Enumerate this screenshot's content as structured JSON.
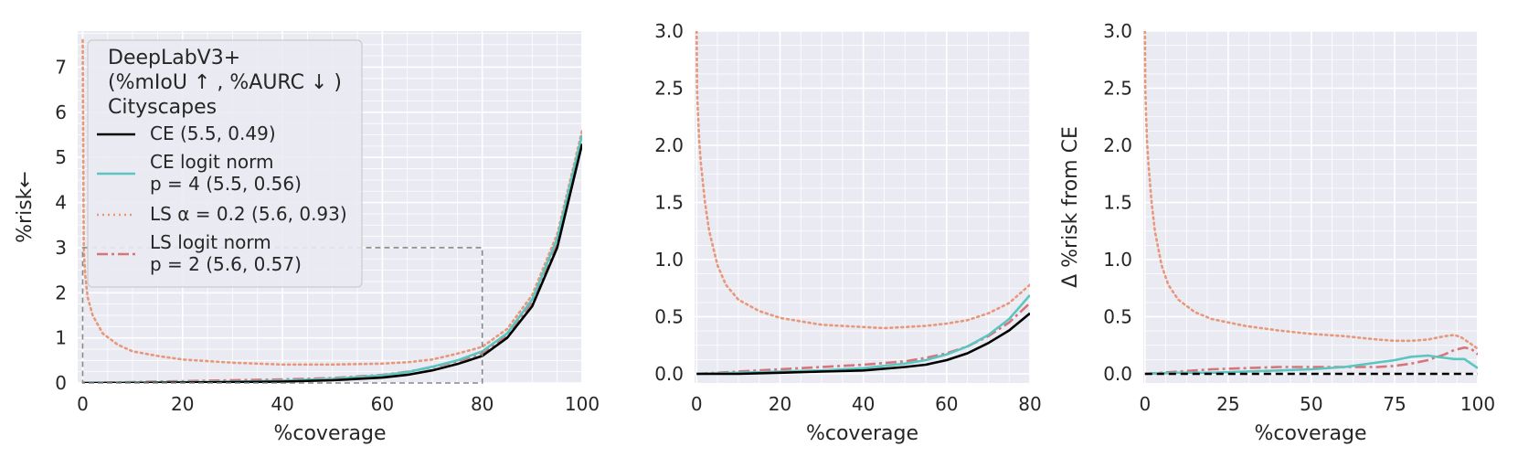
{
  "colors": {
    "panel_bg": "#eaeaf2",
    "grid": "#ffffff",
    "ce": "#000000",
    "ce_logit_norm": "#5bc5c0",
    "ls": "#e8977a",
    "ls_logit_norm": "#d6757a",
    "zoom_box": "#888888"
  },
  "legend": {
    "title_lines": [
      "DeepLabV3+",
      "(%mIoU ↑ , %AURC ↓ )",
      "Cityscapes"
    ],
    "entries": [
      {
        "lines": [
          "CE (5.5, 0.49)"
        ]
      },
      {
        "lines": [
          "CE logit norm",
          "p = 4 (5.5, 0.56)"
        ]
      },
      {
        "lines": [
          "LS α = 0.2 (5.6, 0.93)"
        ]
      },
      {
        "lines": [
          "LS logit norm",
          "p = 2 (5.6, 0.57)"
        ]
      }
    ]
  },
  "chart_data": [
    {
      "type": "line",
      "xlabel": "%coverage",
      "ylabel": "%risk←",
      "xlim": [
        -1,
        100
      ],
      "ylim": [
        0,
        7.8
      ],
      "xticks": [
        0,
        20,
        40,
        60,
        80,
        100
      ],
      "yticks": [
        0,
        1,
        2,
        3,
        4,
        5,
        6,
        7
      ],
      "grid": true,
      "legend_placement": "top-left",
      "zoom_box": {
        "x": [
          0,
          80
        ],
        "y": [
          0,
          3
        ]
      },
      "series": [
        {
          "name": "CE (5.5, 0.49)",
          "style": "solid",
          "x": [
            0,
            10,
            20,
            30,
            40,
            50,
            60,
            65,
            70,
            75,
            80,
            85,
            90,
            95,
            100
          ],
          "y": [
            0.0,
            0.0,
            0.01,
            0.02,
            0.03,
            0.06,
            0.12,
            0.18,
            0.28,
            0.42,
            0.6,
            1.0,
            1.7,
            3.0,
            5.3
          ]
        },
        {
          "name": "CE logit norm p = 4 (5.5, 0.56)",
          "style": "solid",
          "x": [
            0,
            10,
            20,
            30,
            40,
            50,
            60,
            65,
            70,
            75,
            80,
            85,
            90,
            95,
            100
          ],
          "y": [
            0.0,
            0.01,
            0.02,
            0.03,
            0.05,
            0.09,
            0.17,
            0.24,
            0.36,
            0.5,
            0.7,
            1.1,
            1.85,
            3.2,
            5.5
          ]
        },
        {
          "name": "LS α = 0.2 (5.6, 0.93)",
          "style": "dotted",
          "x": [
            0,
            0.2,
            0.5,
            1,
            2,
            4,
            7,
            10,
            15,
            20,
            30,
            40,
            50,
            60,
            65,
            70,
            75,
            80,
            85,
            90,
            95,
            100
          ],
          "y": [
            7.6,
            3.0,
            2.4,
            1.9,
            1.5,
            1.1,
            0.85,
            0.7,
            0.6,
            0.52,
            0.45,
            0.41,
            0.41,
            0.43,
            0.46,
            0.52,
            0.65,
            0.8,
            1.2,
            1.95,
            3.3,
            5.6
          ]
        },
        {
          "name": "LS logit norm p = 2 (5.6, 0.57)",
          "style": "dashdot",
          "x": [
            0,
            10,
            20,
            30,
            40,
            50,
            60,
            65,
            70,
            75,
            80,
            85,
            90,
            95,
            100
          ],
          "y": [
            0.0,
            0.02,
            0.04,
            0.06,
            0.08,
            0.11,
            0.18,
            0.25,
            0.35,
            0.48,
            0.66,
            1.05,
            1.8,
            3.1,
            5.5
          ]
        }
      ]
    },
    {
      "type": "line",
      "xlabel": "%coverage",
      "ylabel": "",
      "xlim": [
        -0.5,
        80
      ],
      "ylim": [
        -0.08,
        3.0
      ],
      "xticks": [
        0,
        20,
        40,
        60,
        80
      ],
      "yticks": [
        0.0,
        0.5,
        1.0,
        1.5,
        2.0,
        2.5,
        3.0
      ],
      "ytick_labels": [
        "0.0",
        "0.5",
        "1.0",
        "1.5",
        "2.0",
        "2.5",
        "3.0"
      ],
      "grid": true,
      "series": [
        {
          "name": "CE (5.5, 0.49)",
          "style": "solid",
          "x": [
            0,
            10,
            20,
            30,
            40,
            50,
            55,
            60,
            65,
            70,
            75,
            80
          ],
          "y": [
            0.0,
            0.0,
            0.01,
            0.02,
            0.03,
            0.06,
            0.08,
            0.12,
            0.18,
            0.27,
            0.38,
            0.53
          ]
        },
        {
          "name": "CE logit norm p = 4 (5.5, 0.56)",
          "style": "solid",
          "x": [
            0,
            10,
            20,
            30,
            40,
            50,
            55,
            60,
            65,
            70,
            75,
            80
          ],
          "y": [
            0.0,
            0.01,
            0.02,
            0.03,
            0.05,
            0.09,
            0.12,
            0.17,
            0.24,
            0.34,
            0.48,
            0.69
          ]
        },
        {
          "name": "LS α = 0.2 (5.6, 0.93)",
          "style": "dotted",
          "x": [
            0,
            0.1,
            0.3,
            0.6,
            1,
            2,
            3,
            5,
            7,
            10,
            15,
            20,
            30,
            40,
            45,
            50,
            55,
            60,
            65,
            70,
            75,
            80
          ],
          "y": [
            3.0,
            2.5,
            2.3,
            2.05,
            1.85,
            1.5,
            1.25,
            0.95,
            0.78,
            0.65,
            0.55,
            0.49,
            0.43,
            0.41,
            0.4,
            0.41,
            0.42,
            0.44,
            0.47,
            0.53,
            0.62,
            0.78
          ]
        },
        {
          "name": "LS logit norm p = 2 (5.6, 0.57)",
          "style": "dashdot",
          "x": [
            0,
            10,
            20,
            30,
            40,
            50,
            55,
            60,
            65,
            70,
            75,
            80
          ],
          "y": [
            0.0,
            0.02,
            0.04,
            0.06,
            0.08,
            0.11,
            0.14,
            0.18,
            0.24,
            0.33,
            0.45,
            0.62
          ]
        }
      ]
    },
    {
      "type": "line",
      "xlabel": "%coverage",
      "ylabel": "Δ %risk from CE",
      "xlim": [
        -0.5,
        100
      ],
      "ylim": [
        -0.08,
        3.0
      ],
      "xticks": [
        0,
        25,
        50,
        75,
        100
      ],
      "yticks": [
        0.0,
        0.5,
        1.0,
        1.5,
        2.0,
        2.5,
        3.0
      ],
      "ytick_labels": [
        "0.0",
        "0.5",
        "1.0",
        "1.5",
        "2.0",
        "2.5",
        "3.0"
      ],
      "grid": true,
      "series": [
        {
          "name": "CE (5.5, 0.49)",
          "style": "dashed",
          "x": [
            0,
            100
          ],
          "y": [
            0.0,
            0.0
          ]
        },
        {
          "name": "CE logit norm p = 4 (5.5, 0.56)",
          "style": "solid",
          "x": [
            0,
            10,
            20,
            30,
            40,
            50,
            60,
            70,
            75,
            80,
            85,
            90,
            93,
            96,
            98,
            100
          ],
          "y": [
            0.0,
            0.01,
            0.01,
            0.02,
            0.03,
            0.04,
            0.06,
            0.1,
            0.12,
            0.15,
            0.16,
            0.14,
            0.13,
            0.13,
            0.09,
            0.05
          ]
        },
        {
          "name": "LS α = 0.2 (5.6, 0.93)",
          "style": "dotted",
          "x": [
            0,
            0.1,
            0.3,
            0.6,
            1,
            2,
            3,
            5,
            7,
            10,
            15,
            20,
            30,
            40,
            50,
            60,
            70,
            75,
            80,
            85,
            90,
            93,
            95,
            97,
            100
          ],
          "y": [
            3.0,
            2.5,
            2.3,
            2.05,
            1.85,
            1.5,
            1.25,
            0.95,
            0.78,
            0.65,
            0.54,
            0.48,
            0.42,
            0.38,
            0.35,
            0.33,
            0.3,
            0.29,
            0.29,
            0.3,
            0.33,
            0.34,
            0.32,
            0.28,
            0.22
          ]
        },
        {
          "name": "LS logit norm p = 2 (5.6, 0.57)",
          "style": "dashdot",
          "x": [
            0,
            10,
            20,
            30,
            40,
            50,
            60,
            70,
            75,
            80,
            85,
            90,
            93,
            96,
            98,
            100
          ],
          "y": [
            0.0,
            0.02,
            0.04,
            0.05,
            0.06,
            0.06,
            0.06,
            0.06,
            0.07,
            0.09,
            0.12,
            0.17,
            0.21,
            0.23,
            0.22,
            0.17
          ]
        }
      ]
    }
  ]
}
